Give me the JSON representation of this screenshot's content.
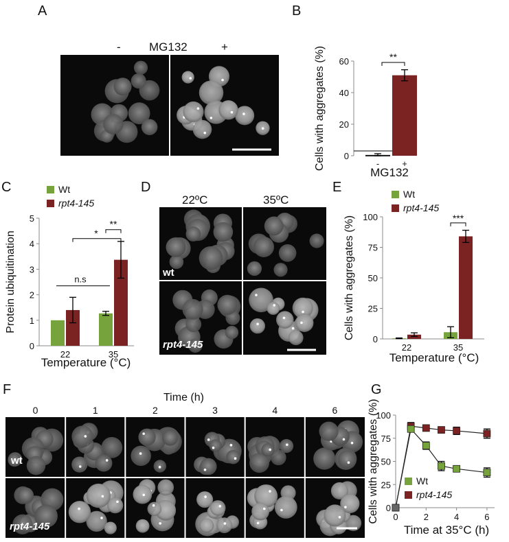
{
  "panels": {
    "A": {
      "label": "A",
      "minus": "-",
      "drug": "MG132",
      "plus": "+"
    },
    "D": {
      "label": "D",
      "col_labels": [
        "22ºC",
        "35ºC"
      ],
      "row_labels": [
        "wt",
        "rpt4-145"
      ]
    },
    "F": {
      "label": "F",
      "title": "Time (h)",
      "time_labels": [
        "0",
        "1",
        "2",
        "3",
        "4",
        "6"
      ],
      "row_labels": [
        "wt",
        "rpt4-145"
      ]
    }
  },
  "colors": {
    "wt": "#77a33d",
    "rpt": "#7b2323"
  },
  "chart_data": [
    {
      "id": "B",
      "panel_label": "B",
      "type": "bar",
      "categories": [
        "-",
        "+"
      ],
      "values": [
        0.5,
        51
      ],
      "errors": [
        0.8,
        3.5
      ],
      "xlabel": "MG132",
      "ylabel": "Cells with aggregates (%)",
      "ylim": [
        0,
        60
      ],
      "yticks": [
        0,
        20,
        40,
        60
      ],
      "annotations": [
        {
          "text": "**",
          "from": 0,
          "to": 1
        }
      ]
    },
    {
      "id": "C",
      "panel_label": "C",
      "type": "bar",
      "categories": [
        "22",
        "35"
      ],
      "series": [
        {
          "name": "Wt",
          "values": [
            1.0,
            1.27
          ],
          "errors": [
            0,
            0.08
          ]
        },
        {
          "name": "rpt4-145",
          "values": [
            1.4,
            3.37
          ],
          "errors": [
            0.5,
            0.72
          ]
        }
      ],
      "xlabel": "Temperature (°C)",
      "ylabel": "Protein ubiquitination",
      "ylim": [
        0,
        5
      ],
      "yticks": [
        0,
        1,
        2,
        3,
        4,
        5
      ],
      "annotations": [
        {
          "text": "**"
        },
        {
          "text": "*"
        },
        {
          "text": "n.s"
        }
      ]
    },
    {
      "id": "E",
      "panel_label": "E",
      "type": "bar",
      "categories": [
        "22",
        "35"
      ],
      "series": [
        {
          "name": "Wt",
          "values": [
            0.5,
            5.5
          ],
          "errors": [
            0.3,
            4.5
          ]
        },
        {
          "name": "rpt4-145",
          "values": [
            3.5,
            84
          ],
          "errors": [
            1.5,
            5
          ]
        }
      ],
      "xlabel": "Temperature (°C)",
      "ylabel": "Cells with aggregates (%)",
      "ylim": [
        0,
        100
      ],
      "yticks": [
        0,
        25,
        50,
        75,
        100
      ],
      "annotations": [
        {
          "text": "***"
        }
      ]
    },
    {
      "id": "G",
      "panel_label": "G",
      "type": "line",
      "x": [
        0,
        1,
        2,
        3,
        4,
        6
      ],
      "series": [
        {
          "name": "Wt",
          "values": [
            0,
            85,
            67,
            45,
            42,
            38
          ],
          "errors": [
            0,
            3,
            4,
            5,
            3,
            5
          ]
        },
        {
          "name": "rpt4-145",
          "values": [
            0,
            88,
            86,
            84,
            83,
            80
          ],
          "errors": [
            0,
            4,
            3,
            3,
            4,
            5
          ]
        }
      ],
      "xlabel": "Time at 35°C (h)",
      "ylabel": "Cells with aggregates (%)",
      "xlim": [
        0,
        6.5
      ],
      "xticks": [
        0,
        2,
        4,
        6
      ],
      "ylim": [
        0,
        100
      ],
      "yticks": [
        0,
        25,
        50,
        75,
        100
      ]
    }
  ]
}
